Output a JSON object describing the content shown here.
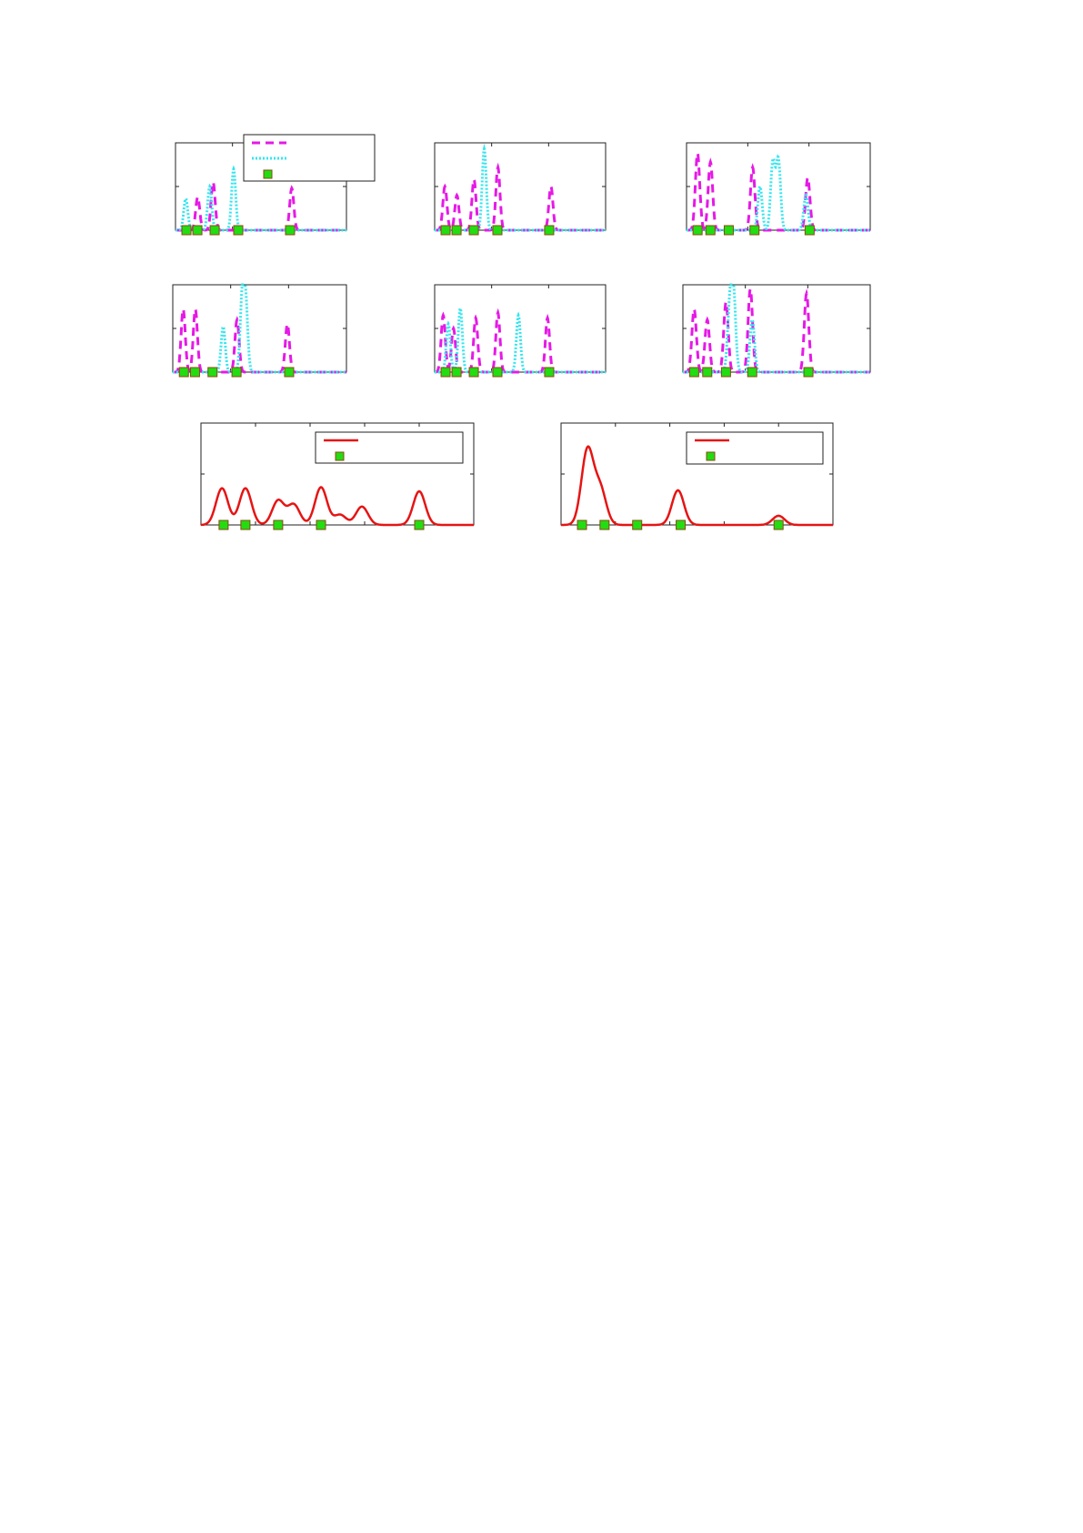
{
  "chart_data": [
    {
      "type": "line",
      "xlim": [
        0,
        1
      ],
      "ylim": [
        0,
        1
      ],
      "grid": false,
      "legend": "top-right",
      "xticks": 3,
      "yticks": 2,
      "markers": [
        0.064,
        0.128,
        0.229,
        0.367,
        0.67
      ],
      "series": [
        {
          "style": "dashed",
          "color": "#e619e6",
          "peaks": [
            [
              0.13,
              0.38
            ],
            [
              0.22,
              0.55
            ],
            [
              0.68,
              0.48
            ]
          ]
        },
        {
          "style": "dotted",
          "color": "#33e6f0",
          "peaks": [
            [
              0.06,
              0.36
            ],
            [
              0.2,
              0.5
            ],
            [
              0.34,
              0.7
            ]
          ]
        }
      ]
    },
    {
      "type": "line",
      "xlim": [
        0,
        1
      ],
      "ylim": [
        0,
        1
      ],
      "grid": false,
      "xticks": 3,
      "yticks": 2,
      "markers": [
        0.064,
        0.128,
        0.229,
        0.367,
        0.67
      ],
      "series": [
        {
          "style": "dashed",
          "color": "#e619e6",
          "peaks": [
            [
              0.06,
              0.5
            ],
            [
              0.13,
              0.4
            ],
            [
              0.23,
              0.58
            ],
            [
              0.37,
              0.72
            ],
            [
              0.68,
              0.5
            ]
          ]
        },
        {
          "style": "dotted",
          "color": "#33e6f0",
          "peaks": [
            [
              0.29,
              0.93
            ]
          ]
        }
      ]
    },
    {
      "type": "line",
      "xlim": [
        0,
        1
      ],
      "ylim": [
        0,
        1
      ],
      "grid": false,
      "xticks": 3,
      "yticks": 2,
      "markers": [
        0.06,
        0.13,
        0.23,
        0.37,
        0.67
      ],
      "series": [
        {
          "style": "dashed",
          "color": "#e619e6",
          "peaks": [
            [
              0.06,
              0.88
            ],
            [
              0.13,
              0.78
            ],
            [
              0.36,
              0.72
            ],
            [
              0.66,
              0.6
            ]
          ]
        },
        {
          "style": "dotted",
          "color": "#33e6f0",
          "peaks": [
            [
              0.4,
              0.5
            ],
            [
              0.47,
              0.78
            ],
            [
              0.5,
              0.8
            ],
            [
              0.65,
              0.4
            ]
          ]
        }
      ]
    },
    {
      "type": "line",
      "xlim": [
        0,
        1
      ],
      "ylim": [
        0,
        1
      ],
      "grid": false,
      "xticks": 3,
      "yticks": 2,
      "markers": [
        0.064,
        0.128,
        0.229,
        0.367,
        0.67
      ],
      "series": [
        {
          "style": "dashed",
          "color": "#e619e6",
          "peaks": [
            [
              0.06,
              0.72
            ],
            [
              0.13,
              0.72
            ],
            [
              0.37,
              0.6
            ],
            [
              0.66,
              0.55
            ]
          ]
        },
        {
          "style": "dotted",
          "color": "#33e6f0",
          "peaks": [
            [
              0.29,
              0.52
            ],
            [
              0.4,
              0.83
            ],
            [
              0.42,
              0.75
            ]
          ]
        }
      ]
    },
    {
      "type": "line",
      "xlim": [
        0,
        1
      ],
      "ylim": [
        0,
        1
      ],
      "grid": false,
      "xticks": 3,
      "yticks": 2,
      "markers": [
        0.064,
        0.128,
        0.229,
        0.367,
        0.67
      ],
      "series": [
        {
          "style": "dashed",
          "color": "#e619e6",
          "peaks": [
            [
              0.05,
              0.65
            ],
            [
              0.11,
              0.5
            ],
            [
              0.24,
              0.62
            ],
            [
              0.37,
              0.68
            ],
            [
              0.66,
              0.62
            ]
          ]
        },
        {
          "style": "dotted",
          "color": "#33e6f0",
          "peaks": [
            [
              0.08,
              0.55
            ],
            [
              0.15,
              0.73
            ],
            [
              0.49,
              0.65
            ]
          ]
        }
      ]
    },
    {
      "type": "line",
      "xlim": [
        0,
        1
      ],
      "ylim": [
        0,
        1
      ],
      "grid": false,
      "xticks": 3,
      "yticks": 2,
      "markers": [
        0.06,
        0.13,
        0.23,
        0.37,
        0.67
      ],
      "series": [
        {
          "style": "dashed",
          "color": "#e619e6",
          "peaks": [
            [
              0.06,
              0.72
            ],
            [
              0.13,
              0.6
            ],
            [
              0.23,
              0.8
            ],
            [
              0.36,
              0.95
            ],
            [
              0.66,
              0.9
            ]
          ]
        },
        {
          "style": "dotted",
          "color": "#33e6f0",
          "peaks": [
            [
              0.25,
              0.7
            ],
            [
              0.27,
              0.88
            ],
            [
              0.37,
              0.6
            ]
          ]
        }
      ]
    },
    {
      "type": "line",
      "xlim": [
        0,
        1
      ],
      "ylim": [
        0,
        1
      ],
      "grid": false,
      "legend": "top-right",
      "xticks": 5,
      "yticks": 2,
      "markers": [
        0.083,
        0.163,
        0.283,
        0.44,
        0.8
      ],
      "series": [
        {
          "style": "solid",
          "color": "#e61414",
          "peaks": [
            [
              0.077,
              0.36
            ],
            [
              0.163,
              0.36
            ],
            [
              0.283,
              0.24
            ],
            [
              0.34,
              0.2
            ],
            [
              0.44,
              0.37
            ],
            [
              0.51,
              0.1
            ],
            [
              0.59,
              0.18
            ],
            [
              0.8,
              0.33
            ]
          ]
        }
      ]
    },
    {
      "type": "line",
      "xlim": [
        0,
        1
      ],
      "ylim": [
        0,
        1
      ],
      "grid": false,
      "legend": "top-right",
      "xticks": 5,
      "yticks": 2,
      "markers": [
        0.077,
        0.16,
        0.28,
        0.44,
        0.8
      ],
      "series": [
        {
          "style": "solid",
          "color": "#e61414",
          "peaks": [
            [
              0.097,
              0.73
            ],
            [
              0.144,
              0.35
            ],
            [
              0.43,
              0.34
            ],
            [
              0.8,
              0.09
            ]
          ]
        }
      ]
    }
  ],
  "colors": {
    "marker_fill": "#22dd11",
    "marker_edge": "#8a4a10",
    "axis": "#222222"
  }
}
